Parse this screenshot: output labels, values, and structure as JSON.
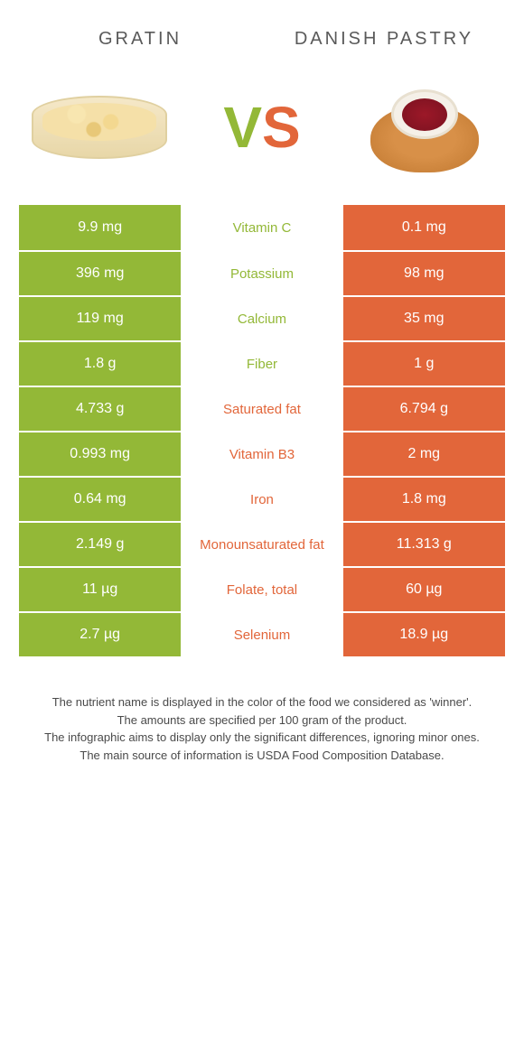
{
  "colors": {
    "green": "#93b837",
    "orange": "#e2663a",
    "header_text": "#5a5a5a",
    "footer_text": "#4a4a4a",
    "row_border": "#ffffff"
  },
  "header": {
    "left_title": "GRATIN",
    "right_title": "DANISH PASTRY"
  },
  "vs": {
    "v": "V",
    "s": "S"
  },
  "rows": [
    {
      "left": "9.9 mg",
      "label": "Vitamin C",
      "right": "0.1 mg",
      "winner": "left"
    },
    {
      "left": "396 mg",
      "label": "Potassium",
      "right": "98 mg",
      "winner": "left"
    },
    {
      "left": "119 mg",
      "label": "Calcium",
      "right": "35 mg",
      "winner": "left"
    },
    {
      "left": "1.8 g",
      "label": "Fiber",
      "right": "1 g",
      "winner": "left"
    },
    {
      "left": "4.733 g",
      "label": "Saturated fat",
      "right": "6.794 g",
      "winner": "right"
    },
    {
      "left": "0.993 mg",
      "label": "Vitamin B3",
      "right": "2 mg",
      "winner": "right"
    },
    {
      "left": "0.64 mg",
      "label": "Iron",
      "right": "1.8 mg",
      "winner": "right"
    },
    {
      "left": "2.149 g",
      "label": "Monounsaturated fat",
      "right": "11.313 g",
      "winner": "right"
    },
    {
      "left": "11 µg",
      "label": "Folate, total",
      "right": "60 µg",
      "winner": "right"
    },
    {
      "left": "2.7 µg",
      "label": "Selenium",
      "right": "18.9 µg",
      "winner": "right"
    }
  ],
  "footer": {
    "line1": "The nutrient name is displayed in the color of the food we considered as 'winner'.",
    "line2": "The amounts are specified per 100 gram of the product.",
    "line3": "The infographic aims to display only the significant differences, ignoring minor ones.",
    "line4": "The main source of information is USDA Food Composition Database."
  }
}
